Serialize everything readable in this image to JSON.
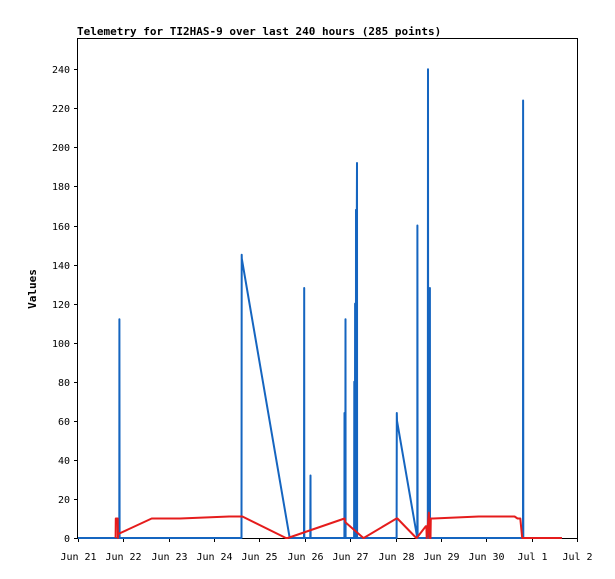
{
  "chart_data": {
    "type": "line",
    "title": "Telemetry for TI2HAS-9 over last 240 hours (285 points)",
    "xlabel": "",
    "ylabel": "Values",
    "xlim": [
      "Jun 21",
      "Jul 2"
    ],
    "ylim": [
      0,
      256
    ],
    "grid": false,
    "legend": "none",
    "x_ticks": [
      "Jun 21",
      "Jun 22",
      "Jun 23",
      "Jun 24",
      "Jun 25",
      "Jun 26",
      "Jun 27",
      "Jun 28",
      "Jun 29",
      "Jun 30",
      "Jul 1",
      "Jul 2"
    ],
    "y_ticks": [
      0,
      20,
      40,
      60,
      80,
      100,
      120,
      140,
      160,
      180,
      200,
      220,
      240
    ],
    "series": [
      {
        "color": "#1565c0",
        "points": [
          [
            "Jun 21 00:00",
            0
          ],
          [
            "Jun 21 21:50",
            0
          ],
          [
            "Jun 21 21:55",
            112
          ],
          [
            "Jun 21 22:00",
            0
          ],
          [
            "Jun 24 14:30",
            0
          ],
          [
            "Jun 24 14:35",
            145
          ],
          [
            "Jun 24 14:40",
            143
          ],
          [
            "Jun 25 16:00",
            0
          ],
          [
            "Jun 25 23:35",
            0
          ],
          [
            "Jun 25 23:40",
            128
          ],
          [
            "Jun 25 23:45",
            0
          ],
          [
            "Jun 26 02:55",
            0
          ],
          [
            "Jun 26 03:00",
            32
          ],
          [
            "Jun 26 03:05",
            0
          ],
          [
            "Jun 26 20:55",
            0
          ],
          [
            "Jun 26 21:00",
            64
          ],
          [
            "Jun 26 21:05",
            0
          ],
          [
            "Jun 26 21:25",
            0
          ],
          [
            "Jun 26 21:30",
            112
          ],
          [
            "Jun 26 21:35",
            0
          ],
          [
            "Jun 27 02:05",
            0
          ],
          [
            "Jun 27 02:10",
            80
          ],
          [
            "Jun 27 02:15",
            0
          ],
          [
            "Jun 27 02:30",
            0
          ],
          [
            "Jun 27 02:35",
            120
          ],
          [
            "Jun 27 02:40",
            0
          ],
          [
            "Jun 27 03:00",
            0
          ],
          [
            "Jun 27 03:05",
            168
          ],
          [
            "Jun 27 03:10",
            72
          ],
          [
            "Jun 27 03:35",
            192
          ],
          [
            "Jun 27 03:40",
            0
          ],
          [
            "Jun 28 00:35",
            0
          ],
          [
            "Jun 28 00:40",
            64
          ],
          [
            "Jun 28 00:45",
            60
          ],
          [
            "Jun 28 11:30",
            0
          ],
          [
            "Jun 28 11:35",
            160
          ],
          [
            "Jun 28 11:40",
            0
          ],
          [
            "Jun 28 17:05",
            0
          ],
          [
            "Jun 28 17:10",
            240
          ],
          [
            "Jun 28 17:15",
            0
          ],
          [
            "Jun 28 18:05",
            0
          ],
          [
            "Jun 28 18:10",
            128
          ],
          [
            "Jun 28 18:15",
            0
          ],
          [
            "Jun 30 19:25",
            0
          ],
          [
            "Jun 30 19:30",
            224
          ],
          [
            "Jun 30 19:35",
            0
          ],
          [
            "Jul 1 16:00",
            0
          ]
        ]
      },
      {
        "color": "#e51c1c",
        "points": [
          [
            "Jun 21 19:55",
            0
          ],
          [
            "Jun 21 20:00",
            10
          ],
          [
            "Jun 21 21:00",
            10
          ],
          [
            "Jun 21 21:05",
            0
          ],
          [
            "Jun 21 21:10",
            2
          ],
          [
            "Jun 22 15:00",
            10
          ],
          [
            "Jun 23 06:00",
            10
          ],
          [
            "Jun 24 08:00",
            11
          ],
          [
            "Jun 24 15:00",
            11
          ],
          [
            "Jun 25 14:00",
            0
          ],
          [
            "Jun 25 15:00",
            0
          ],
          [
            "Jun 26 21:00",
            10
          ],
          [
            "Jun 26 21:30",
            8
          ],
          [
            "Jun 27 07:00",
            0
          ],
          [
            "Jun 27 07:10",
            0
          ],
          [
            "Jun 28 00:30",
            10
          ],
          [
            "Jun 28 01:00",
            10
          ],
          [
            "Jun 28 11:00",
            0
          ],
          [
            "Jun 28 11:10",
            0
          ],
          [
            "Jun 28 16:00",
            6
          ],
          [
            "Jun 28 16:20",
            6
          ],
          [
            "Jun 28 16:30",
            0
          ],
          [
            "Jun 28 17:40",
            13
          ],
          [
            "Jun 28 17:50",
            0
          ],
          [
            "Jun 28 18:30",
            0
          ],
          [
            "Jun 28 18:40",
            10
          ],
          [
            "Jun 28 20:00",
            10
          ],
          [
            "Jun 29 20:00",
            11
          ],
          [
            "Jun 30 09:00",
            11
          ],
          [
            "Jun 30 15:00",
            11
          ],
          [
            "Jun 30 16:30",
            10
          ],
          [
            "Jun 30 18:00",
            10
          ],
          [
            "Jun 30 19:00",
            0
          ],
          [
            "Jul 1 16:00",
            0
          ]
        ]
      }
    ]
  }
}
